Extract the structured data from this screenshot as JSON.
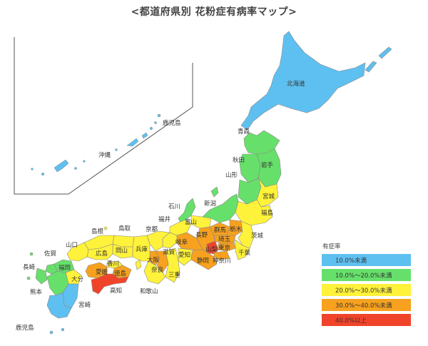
{
  "title": "<都道府県別 花粉症有病率マップ>",
  "colors": {
    "lt10": "#5ec0f0",
    "r10_20": "#66e06a",
    "r20_30": "#fff23a",
    "r30_40": "#f7a11e",
    "ge40": "#f0442a",
    "border": "#8a8a8a",
    "inset_frame": "#555555"
  },
  "legend": {
    "title": "有症率",
    "items": [
      {
        "label": "10.0%未満",
        "color_key": "lt10"
      },
      {
        "label": "10.0%〜20.0%未満",
        "color_key": "r10_20"
      },
      {
        "label": "20.0%〜30.0%未満",
        "color_key": "r20_30"
      },
      {
        "label": "30.0%〜40.0%未満",
        "color_key": "r30_40"
      },
      {
        "label": "40.0%以上",
        "color_key": "ge40"
      }
    ]
  },
  "inset_labels": {
    "okinawa": "沖縄",
    "kagoshima_islands": "鹿児島"
  },
  "prefectures": {
    "hokkaido": "北海道",
    "aomori": "青森",
    "akita": "秋田",
    "iwate": "岩手",
    "yamagata": "山形",
    "miyagi": "宮城",
    "fukushima": "福島",
    "niigata": "新潟",
    "ishikawa": "石川",
    "toyama": "富山",
    "fukui": "福井",
    "nagano": "長野",
    "gunma": "群馬",
    "tochigi": "栃木",
    "ibaraki": "茨城",
    "saitama": "埼玉",
    "tokyo": "東京",
    "yamanashi": "山梨",
    "chiba": "千葉",
    "kanagawa": "神奈川",
    "shizuoka": "静岡",
    "gifu": "岐阜",
    "aichi": "愛知",
    "mie": "三重",
    "shiga": "滋賀",
    "kyoto": "京都",
    "osaka": "大阪",
    "hyogo": "兵庫",
    "nara": "奈良",
    "wakayama": "和歌山",
    "tottori": "鳥取",
    "shimane": "島根",
    "okayama": "岡山",
    "hiroshima": "広島",
    "yamaguchi": "山口",
    "kagawa": "香川",
    "tokushima": "徳島",
    "ehime": "愛媛",
    "kochi": "高知",
    "fukuoka": "福岡",
    "saga": "佐賀",
    "nagasaki": "長崎",
    "oita": "大分",
    "kumamoto": "熊本",
    "miyazaki": "宮崎",
    "kagoshima": "鹿児島"
  },
  "prevalence_band": {
    "hokkaido": "lt10",
    "aomori": "r10_20",
    "akita": "r10_20",
    "iwate": "r10_20",
    "yamagata": "r10_20",
    "miyagi": "r20_30",
    "fukushima": "r20_30",
    "niigata": "r10_20",
    "ishikawa": "r10_20",
    "toyama": "r20_30",
    "fukui": "r20_30",
    "nagano": "r30_40",
    "gunma": "r30_40",
    "tochigi": "r30_40",
    "ibaraki": "r20_30",
    "saitama": "r30_40",
    "tokyo": "r30_40",
    "yamanashi": "ge40",
    "chiba": "r20_30",
    "kanagawa": "r30_40",
    "shizuoka": "r30_40",
    "gifu": "r30_40",
    "aichi": "r20_30",
    "mie": "r20_30",
    "shiga": "r20_30",
    "kyoto": "r20_30",
    "osaka": "r30_40",
    "hyogo": "r20_30",
    "nara": "r30_40",
    "wakayama": "r20_30",
    "tottori": "r20_30",
    "shimane": "r20_30",
    "okayama": "r20_30",
    "hiroshima": "r20_30",
    "yamaguchi": "r20_30",
    "kagawa": "r20_30",
    "tokushima": "r30_40",
    "ehime": "r30_40",
    "kochi": "ge40",
    "fukuoka": "r10_20",
    "saga": "r10_20",
    "nagasaki": "r10_20",
    "oita": "r20_30",
    "kumamoto": "r10_20",
    "miyazaki": "lt10",
    "kagoshima": "lt10"
  }
}
